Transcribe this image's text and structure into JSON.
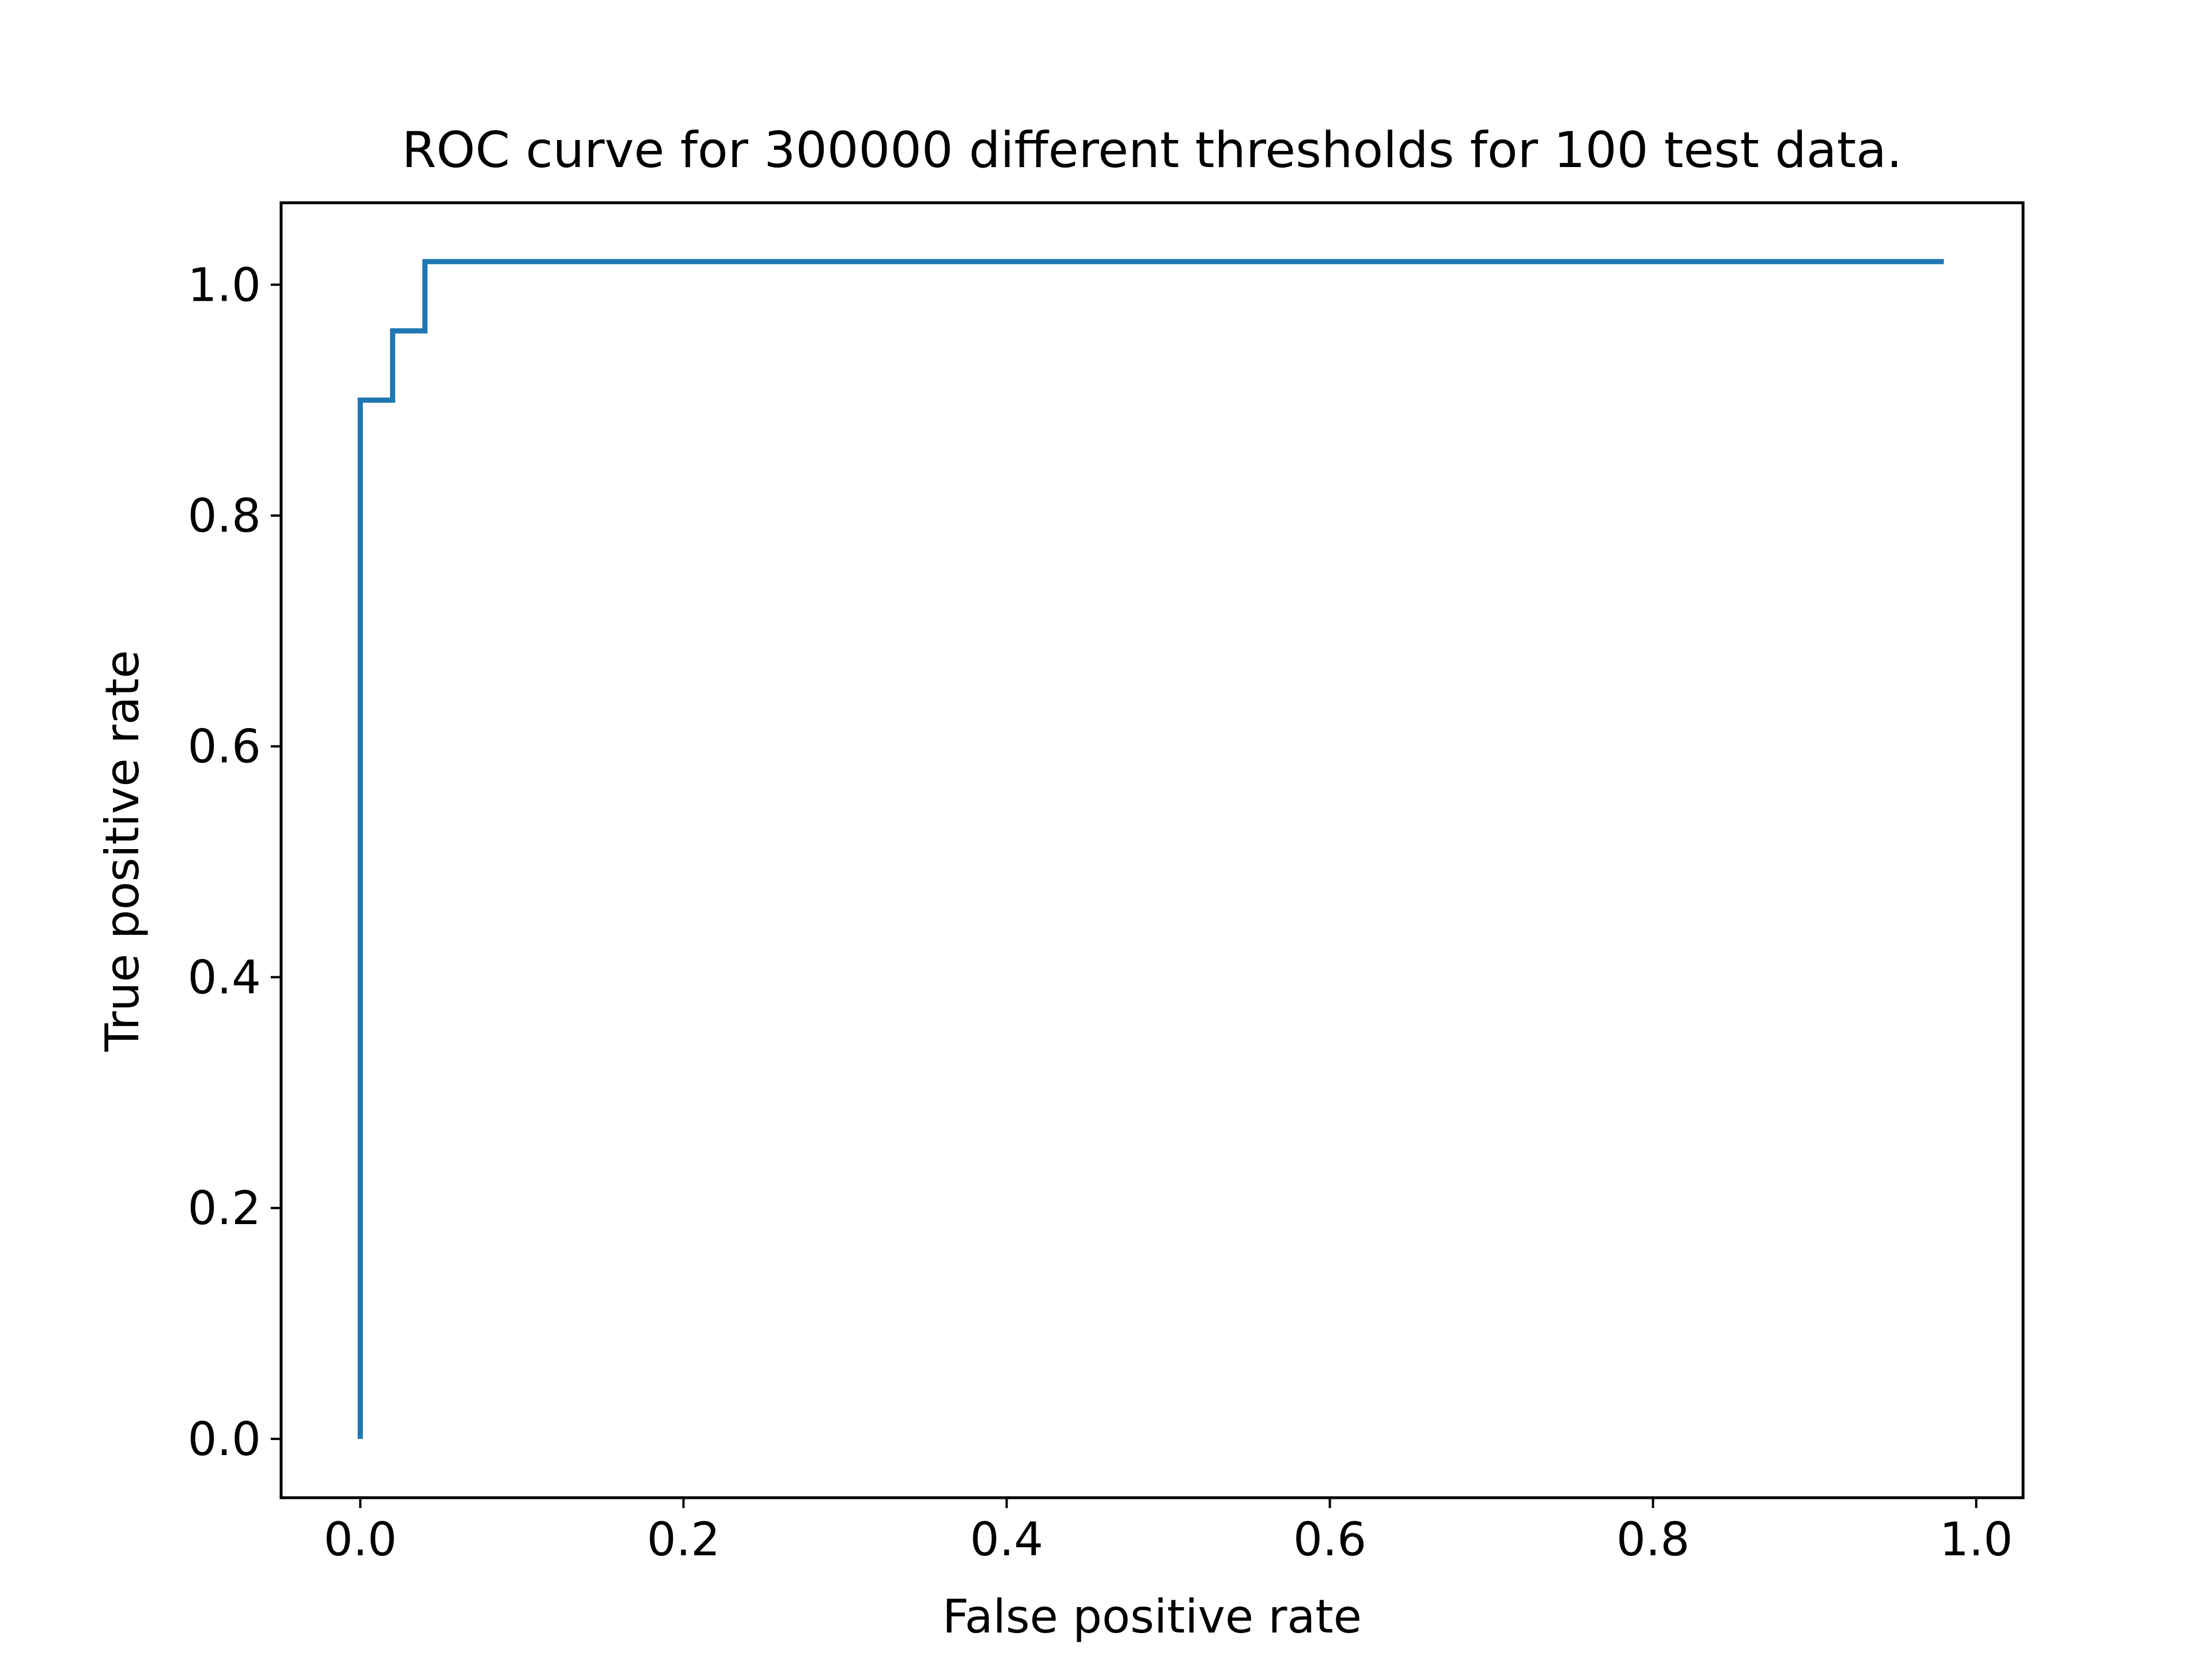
{
  "chart_data": {
    "type": "line",
    "title": "ROC curve for 300000 different thresholds for 100 test data.",
    "xlabel": "False positive rate",
    "ylabel": "True positive rate",
    "xlim": [
      -0.049,
      1.029
    ],
    "ylim": [
      -0.051,
      1.071
    ],
    "x_ticks": [
      0.0,
      0.2,
      0.4,
      0.6,
      0.8,
      1.0
    ],
    "x_tick_labels": [
      "0.0",
      "0.2",
      "0.4",
      "0.6",
      "0.8",
      "1.0"
    ],
    "y_ticks": [
      0.0,
      0.2,
      0.4,
      0.6,
      0.8,
      1.0
    ],
    "y_tick_labels": [
      "0.0",
      "0.2",
      "0.4",
      "0.6",
      "0.8",
      "1.0"
    ],
    "grid": false,
    "legend": false,
    "series": [
      {
        "color": "#1f77b4",
        "x": [
          0.0,
          0.0,
          0.02,
          0.02,
          0.04,
          0.04,
          0.98
        ],
        "y": [
          0.0,
          0.9,
          0.9,
          0.96,
          0.96,
          1.02,
          1.02
        ]
      }
    ]
  }
}
